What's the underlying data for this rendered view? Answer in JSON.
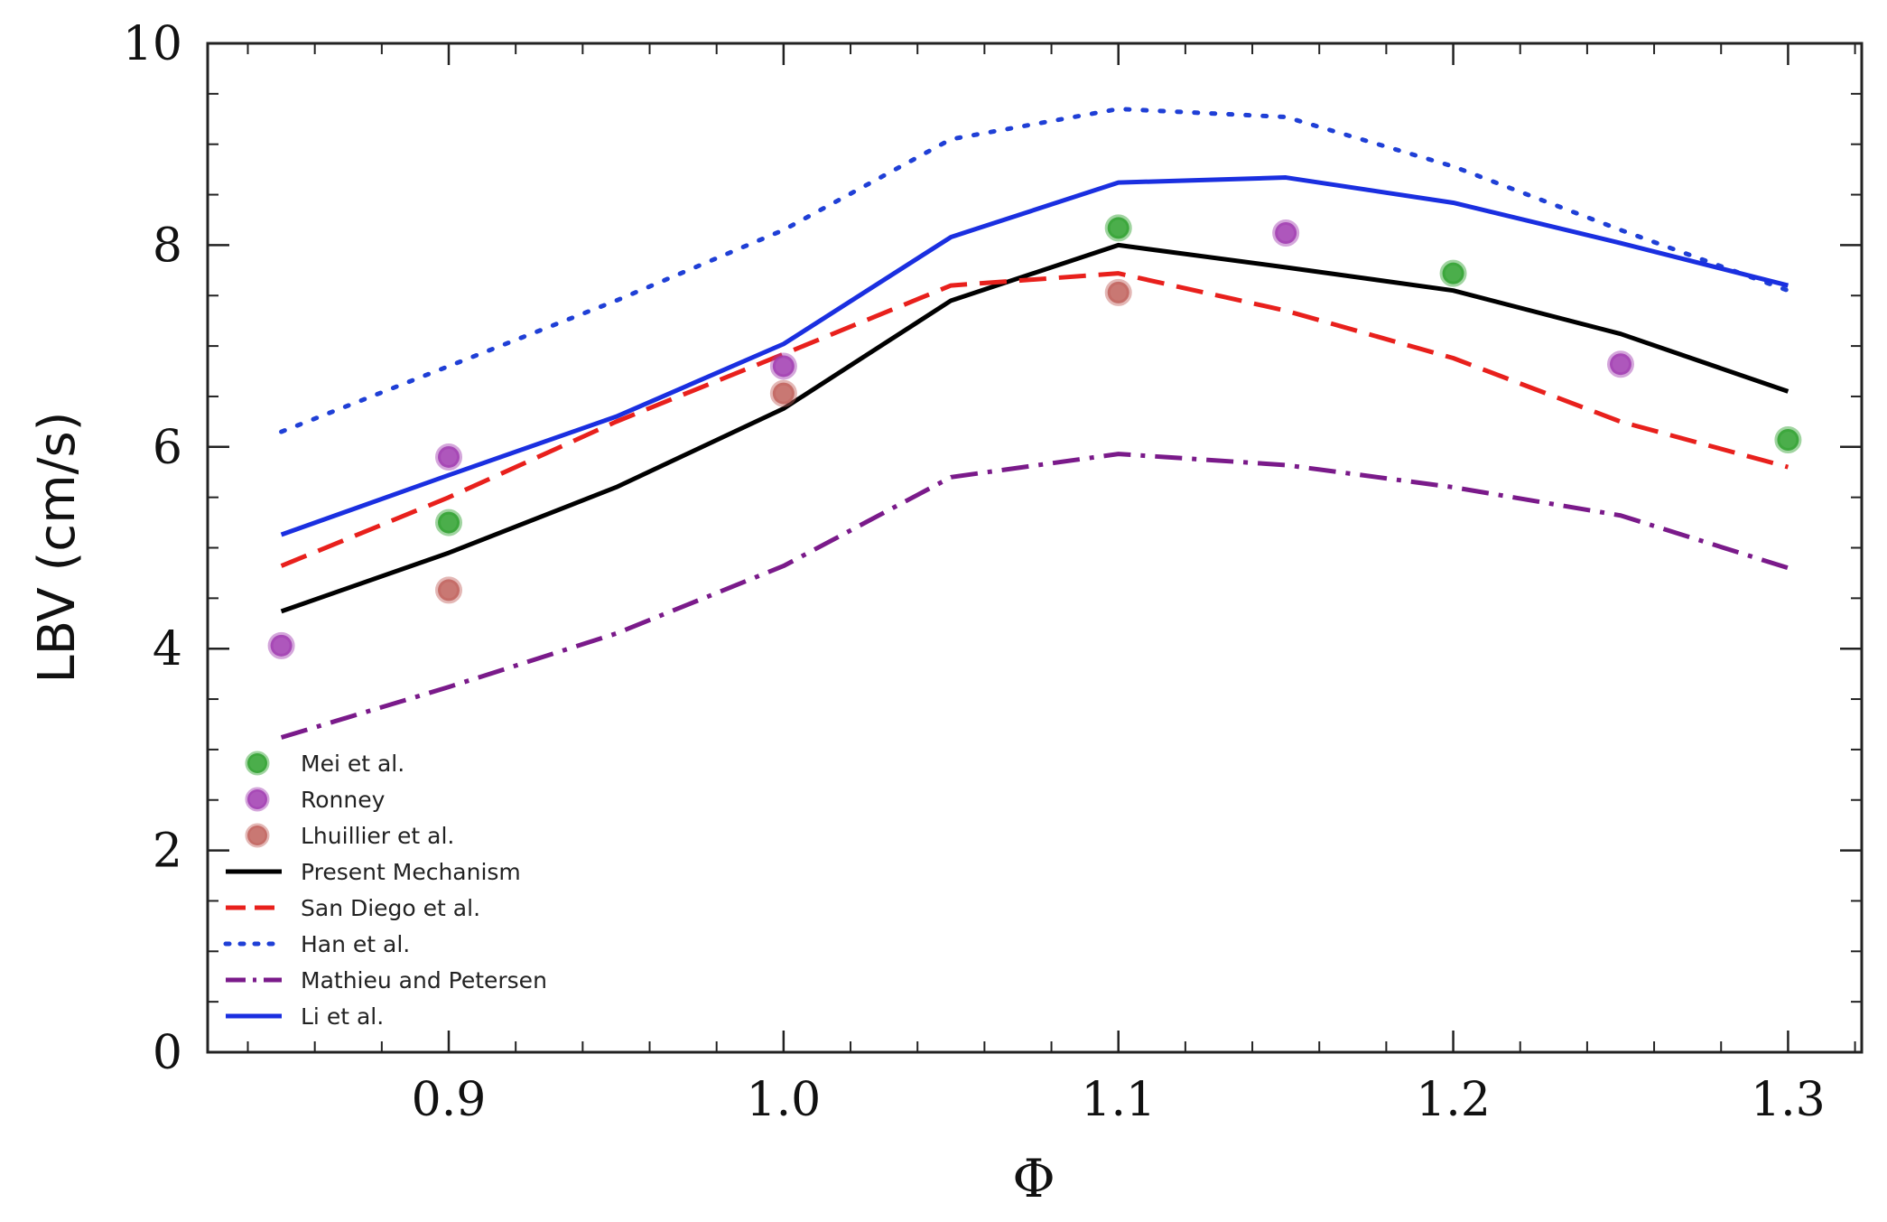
{
  "chart_data": {
    "type": "line",
    "title": "",
    "xlabel": "Φ",
    "ylabel": "LBV (cm/s)",
    "xlim": [
      0.828,
      1.322
    ],
    "ylim": [
      0,
      10
    ],
    "xticks": [
      0.9,
      1.0,
      1.1,
      1.2,
      1.3
    ],
    "xtick_labels": [
      "0.9",
      "1.0",
      "1.1",
      "1.2",
      "1.3"
    ],
    "yticks": [
      0,
      2,
      4,
      6,
      8,
      10
    ],
    "ytick_labels": [
      "0",
      "2",
      "4",
      "6",
      "8",
      "10"
    ],
    "grid": false,
    "legend_position": "lower-left",
    "series": [
      {
        "name": "Mei et al.",
        "kind": "scatter",
        "color": "#2ca02c",
        "x": [
          0.9,
          1.1,
          1.2,
          1.3
        ],
        "y": [
          5.25,
          8.17,
          7.72,
          6.07
        ]
      },
      {
        "name": "Ronney",
        "kind": "scatter",
        "color": "#a03ab0",
        "x": [
          0.85,
          0.9,
          1.0,
          1.15,
          1.25
        ],
        "y": [
          4.03,
          5.9,
          6.8,
          8.12,
          6.82
        ]
      },
      {
        "name": "Lhuillier et al.",
        "kind": "scatter",
        "color": "#c0605a",
        "x": [
          0.9,
          1.0,
          1.1
        ],
        "y": [
          4.58,
          6.53,
          7.53
        ]
      },
      {
        "name": "Present Mechanism",
        "kind": "line",
        "style": "solid",
        "color": "#000000",
        "x": [
          0.85,
          0.9,
          0.95,
          1.0,
          1.05,
          1.1,
          1.15,
          1.2,
          1.25,
          1.3
        ],
        "y": [
          4.37,
          4.95,
          5.6,
          6.38,
          7.45,
          8.0,
          7.78,
          7.55,
          7.12,
          6.55
        ]
      },
      {
        "name": "San Diego et al.",
        "kind": "line",
        "style": "dashed",
        "color": "#e8201c",
        "x": [
          0.85,
          0.9,
          0.95,
          1.0,
          1.05,
          1.1,
          1.15,
          1.2,
          1.25,
          1.3
        ],
        "y": [
          4.82,
          5.5,
          6.25,
          6.92,
          7.6,
          7.72,
          7.35,
          6.88,
          6.25,
          5.8
        ]
      },
      {
        "name": "Han et al.",
        "kind": "line",
        "style": "dotted",
        "color": "#1f3fd6",
        "x": [
          0.85,
          0.9,
          0.95,
          1.0,
          1.05,
          1.1,
          1.15,
          1.2,
          1.25,
          1.3
        ],
        "y": [
          6.15,
          6.8,
          7.45,
          8.15,
          9.05,
          9.35,
          9.27,
          8.78,
          8.15,
          7.55
        ]
      },
      {
        "name": "Mathieu and Petersen",
        "kind": "line",
        "style": "dashdot",
        "color": "#7a1a8a",
        "x": [
          0.85,
          0.9,
          0.95,
          1.0,
          1.05,
          1.1,
          1.15,
          1.2,
          1.25,
          1.3
        ],
        "y": [
          3.12,
          3.62,
          4.15,
          4.82,
          5.7,
          5.93,
          5.82,
          5.6,
          5.32,
          4.8
        ]
      },
      {
        "name": "Li et al.",
        "kind": "line",
        "style": "solid",
        "color": "#1a2fe0",
        "x": [
          0.85,
          0.9,
          0.95,
          1.0,
          1.05,
          1.1,
          1.15,
          1.2,
          1.25,
          1.3
        ],
        "y": [
          5.13,
          5.72,
          6.3,
          7.02,
          8.08,
          8.62,
          8.67,
          8.42,
          8.02,
          7.6
        ]
      }
    ]
  }
}
